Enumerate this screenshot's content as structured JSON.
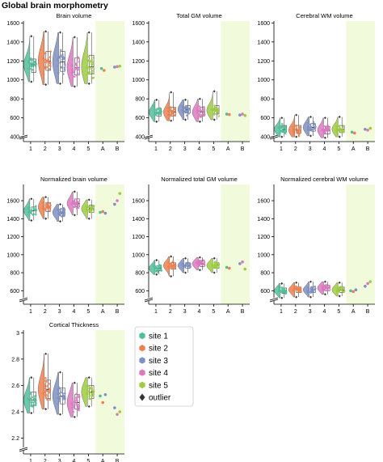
{
  "figure_title": "Global brain morphometry",
  "colors": {
    "site 1": "#4fbf9a",
    "site 2": "#f07f4e",
    "site 3": "#7e8fc2",
    "site 4": "#dd78c0",
    "site 5": "#9dcc3f",
    "outlier": "#333333",
    "shade": "#f2fadc"
  },
  "legend": {
    "items": [
      {
        "label": "site 1",
        "marker": "hexagon",
        "color": "#4fbf9a"
      },
      {
        "label": "site 2",
        "marker": "hexagon",
        "color": "#f07f4e"
      },
      {
        "label": "site 3",
        "marker": "hexagon",
        "color": "#7e8fc2"
      },
      {
        "label": "site 4",
        "marker": "hexagon",
        "color": "#dd78c0"
      },
      {
        "label": "site 5",
        "marker": "hexagon",
        "color": "#9dcc3f"
      },
      {
        "label": "outlier",
        "marker": "diamond",
        "color": "#333333"
      }
    ]
  },
  "chart_data": [
    {
      "type": "scatter",
      "title": "Brain volume",
      "categories": [
        "1",
        "2",
        "3",
        "4",
        "5",
        "A",
        "B"
      ],
      "yticks": [
        400,
        600,
        800,
        1000,
        1200,
        1400,
        1600
      ],
      "ylim": [
        350,
        1620
      ],
      "axis_break": true,
      "series": [
        {
          "site": "1",
          "median": 1160,
          "q1": 1080,
          "q3": 1220,
          "min": 980,
          "max": 1460
        },
        {
          "site": "2",
          "median": 1200,
          "q1": 1100,
          "q3": 1300,
          "min": 950,
          "max": 1510
        },
        {
          "site": "3",
          "median": 1190,
          "q1": 1090,
          "q3": 1300,
          "min": 960,
          "max": 1500
        },
        {
          "site": "4",
          "median": 1130,
          "q1": 1050,
          "q3": 1230,
          "min": 930,
          "max": 1450
        },
        {
          "site": "5",
          "median": 1140,
          "q1": 1060,
          "q3": 1260,
          "min": 960,
          "max": 1500
        }
      ],
      "traveling_subjects": {
        "A": [
          1120,
          1100
        ],
        "B": [
          1135,
          1140,
          1145
        ]
      }
    },
    {
      "type": "scatter",
      "title": "Total GM volume",
      "categories": [
        "1",
        "2",
        "3",
        "4",
        "5",
        "A",
        "B"
      ],
      "yticks": [
        400,
        600,
        800,
        1000,
        1200,
        1400,
        1600
      ],
      "ylim": [
        350,
        1620
      ],
      "axis_break": true,
      "series": [
        {
          "site": "1",
          "median": 660,
          "q1": 620,
          "q3": 700,
          "min": 560,
          "max": 790
        },
        {
          "site": "2",
          "median": 660,
          "q1": 620,
          "q3": 710,
          "min": 570,
          "max": 870
        },
        {
          "site": "3",
          "median": 690,
          "q1": 650,
          "q3": 730,
          "min": 580,
          "max": 790
        },
        {
          "site": "4",
          "median": 660,
          "q1": 620,
          "q3": 710,
          "min": 560,
          "max": 800
        },
        {
          "site": "5",
          "median": 680,
          "q1": 640,
          "q3": 730,
          "min": 580,
          "max": 880
        }
      ],
      "traveling_subjects": {
        "A": [
          640,
          635
        ],
        "B": [
          630,
          640,
          625
        ]
      }
    },
    {
      "type": "scatter",
      "title": "Cerebral WM volume",
      "categories": [
        "1",
        "2",
        "3",
        "4",
        "5",
        "A",
        "B"
      ],
      "yticks": [
        400,
        600,
        800,
        1000,
        1200,
        1400,
        1600
      ],
      "ylim": [
        350,
        1620
      ],
      "axis_break": true,
      "series": [
        {
          "site": "1",
          "median": 480,
          "q1": 450,
          "q3": 520,
          "min": 400,
          "max": 600
        },
        {
          "site": "2",
          "median": 470,
          "q1": 440,
          "q3": 520,
          "min": 400,
          "max": 630
        },
        {
          "site": "3",
          "median": 500,
          "q1": 460,
          "q3": 540,
          "min": 410,
          "max": 610
        },
        {
          "site": "4",
          "median": 470,
          "q1": 430,
          "q3": 510,
          "min": 390,
          "max": 600
        },
        {
          "site": "5",
          "median": 480,
          "q1": 445,
          "q3": 520,
          "min": 400,
          "max": 610
        }
      ],
      "traveling_subjects": {
        "A": [
          450,
          440
        ],
        "B": [
          480,
          470,
          490
        ]
      }
    },
    {
      "type": "scatter",
      "title": "Normalized brain volume",
      "categories": [
        "1",
        "2",
        "3",
        "4",
        "5",
        "A",
        "B"
      ],
      "yticks": [
        600,
        800,
        1000,
        1200,
        1400,
        1600
      ],
      "ylim": [
        450,
        1780
      ],
      "axis_break": true,
      "series": [
        {
          "site": "1",
          "median": 1490,
          "q1": 1450,
          "q3": 1530,
          "min": 1380,
          "max": 1620
        },
        {
          "site": "2",
          "median": 1530,
          "q1": 1480,
          "q3": 1580,
          "min": 1400,
          "max": 1640
        },
        {
          "site": "3",
          "median": 1470,
          "q1": 1430,
          "q3": 1510,
          "min": 1370,
          "max": 1560
        },
        {
          "site": "4",
          "median": 1570,
          "q1": 1530,
          "q3": 1620,
          "min": 1440,
          "max": 1700
        },
        {
          "site": "5",
          "median": 1510,
          "q1": 1470,
          "q3": 1550,
          "min": 1400,
          "max": 1610
        }
      ],
      "traveling_subjects": {
        "A": [
          1470,
          1480,
          1460
        ],
        "B": [
          1560,
          1600,
          1680
        ]
      }
    },
    {
      "type": "scatter",
      "title": "Normalized total GM volume",
      "categories": [
        "1",
        "2",
        "3",
        "4",
        "5",
        "A",
        "B"
      ],
      "yticks": [
        600,
        800,
        1000,
        1200,
        1400,
        1600
      ],
      "ylim": [
        450,
        1780
      ],
      "axis_break": true,
      "series": [
        {
          "site": "1",
          "median": 850,
          "q1": 820,
          "q3": 880,
          "min": 780,
          "max": 940
        },
        {
          "site": "2",
          "median": 880,
          "q1": 840,
          "q3": 910,
          "min": 760,
          "max": 980
        },
        {
          "site": "3",
          "median": 880,
          "q1": 850,
          "q3": 910,
          "min": 800,
          "max": 960
        },
        {
          "site": "4",
          "median": 900,
          "q1": 870,
          "q3": 930,
          "min": 830,
          "max": 970
        },
        {
          "site": "5",
          "median": 880,
          "q1": 850,
          "q3": 910,
          "min": 800,
          "max": 960
        }
      ],
      "traveling_subjects": {
        "A": [
          860,
          850
        ],
        "B": [
          900,
          920,
          840
        ]
      }
    },
    {
      "type": "scatter",
      "title": "Normalized cerebral WM volume",
      "categories": [
        "1",
        "2",
        "3",
        "4",
        "5",
        "A",
        "B"
      ],
      "yticks": [
        600,
        800,
        1000,
        1200,
        1400,
        1600
      ],
      "ylim": [
        450,
        1780
      ],
      "axis_break": true,
      "series": [
        {
          "site": "1",
          "median": 600,
          "q1": 570,
          "q3": 630,
          "min": 520,
          "max": 680
        },
        {
          "site": "2",
          "median": 610,
          "q1": 580,
          "q3": 640,
          "min": 530,
          "max": 690
        },
        {
          "site": "3",
          "median": 610,
          "q1": 580,
          "q3": 640,
          "min": 530,
          "max": 700
        },
        {
          "site": "4",
          "median": 630,
          "q1": 600,
          "q3": 660,
          "min": 560,
          "max": 700
        },
        {
          "site": "5",
          "median": 610,
          "q1": 580,
          "q3": 640,
          "min": 540,
          "max": 690
        }
      ],
      "traveling_subjects": {
        "A": [
          600,
          590,
          610
        ],
        "B": [
          650,
          680,
          700
        ]
      }
    },
    {
      "type": "scatter",
      "title": "Cortical Thickness",
      "categories": [
        "1",
        "2",
        "3",
        "4",
        "5",
        "A",
        "B"
      ],
      "yticks": [
        2.2,
        2.4,
        2.6,
        2.8,
        3.0
      ],
      "ylim": [
        2.08,
        3.02
      ],
      "axis_break": true,
      "series": [
        {
          "site": "1",
          "median": 2.49,
          "q1": 2.45,
          "q3": 2.55,
          "min": 2.39,
          "max": 2.66
        },
        {
          "site": "2",
          "median": 2.57,
          "q1": 2.5,
          "q3": 2.64,
          "min": 2.42,
          "max": 2.84
        },
        {
          "site": "3",
          "median": 2.52,
          "q1": 2.46,
          "q3": 2.58,
          "min": 2.38,
          "max": 2.7
        },
        {
          "site": "4",
          "median": 2.47,
          "q1": 2.42,
          "q3": 2.53,
          "min": 2.36,
          "max": 2.62
        },
        {
          "site": "5",
          "median": 2.55,
          "q1": 2.5,
          "q3": 2.6,
          "min": 2.44,
          "max": 2.66
        }
      ],
      "traveling_subjects": {
        "A": [
          2.52,
          2.47,
          2.53
        ],
        "B": [
          2.43,
          2.38,
          2.4
        ]
      }
    }
  ]
}
